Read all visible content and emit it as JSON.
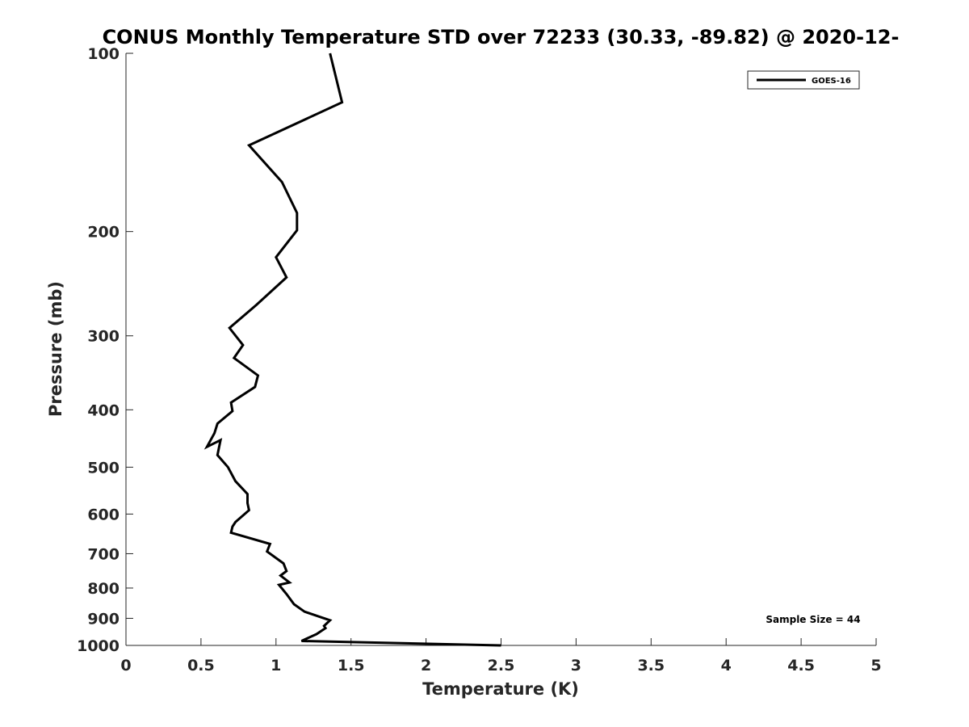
{
  "chart_data": {
    "type": "line",
    "title": "CONUS Monthly Temperature STD over 72233 (30.33, -89.82) @ 2020-12-",
    "xlabel": "Temperature (K)",
    "ylabel": "Pressure (mb)",
    "xlim": [
      0,
      5
    ],
    "ylim": [
      100,
      1000
    ],
    "y_scale": "log",
    "y_reversed": true,
    "grid": false,
    "legend_position": "top-right",
    "x_ticks": [
      0,
      0.5,
      1,
      1.5,
      2,
      2.5,
      3,
      3.5,
      4,
      4.5,
      5
    ],
    "x_tick_labels": [
      "0",
      "0.5",
      "1",
      "1.5",
      "2",
      "2.5",
      "3",
      "3.5",
      "4",
      "4.5",
      "5"
    ],
    "y_ticks": [
      100,
      200,
      300,
      400,
      500,
      600,
      700,
      800,
      900,
      1000
    ],
    "y_tick_labels": [
      "100",
      "200",
      "300",
      "400",
      "500",
      "600",
      "700",
      "800",
      "900",
      "1000"
    ],
    "annotation": "Sample Size = 44",
    "series": [
      {
        "name": "GOES-16",
        "color": "#000000",
        "x": [
          1.36,
          1.44,
          0.82,
          1.04,
          1.14,
          1.14,
          1.0,
          1.07,
          0.87,
          0.69,
          0.78,
          0.72,
          0.88,
          0.86,
          0.7,
          0.71,
          0.61,
          0.59,
          0.54,
          0.63,
          0.61,
          0.68,
          0.73,
          0.81,
          0.81,
          0.82,
          0.73,
          0.71,
          0.7,
          0.96,
          0.94,
          1.05,
          1.07,
          1.03,
          1.09,
          1.02,
          1.07,
          1.12,
          1.19,
          1.36,
          1.32,
          1.33,
          1.27,
          1.17,
          2.5
        ],
        "y": [
          100,
          121,
          143,
          165,
          186,
          199,
          221,
          239,
          266,
          291,
          311,
          327,
          350,
          366,
          389,
          402,
          422,
          438,
          462,
          450,
          477,
          500,
          528,
          555,
          575,
          591,
          619,
          630,
          645,
          674,
          694,
          727,
          749,
          762,
          783,
          790,
          819,
          852,
          877,
          907,
          927,
          935,
          957,
          983,
          1000
        ]
      }
    ]
  }
}
